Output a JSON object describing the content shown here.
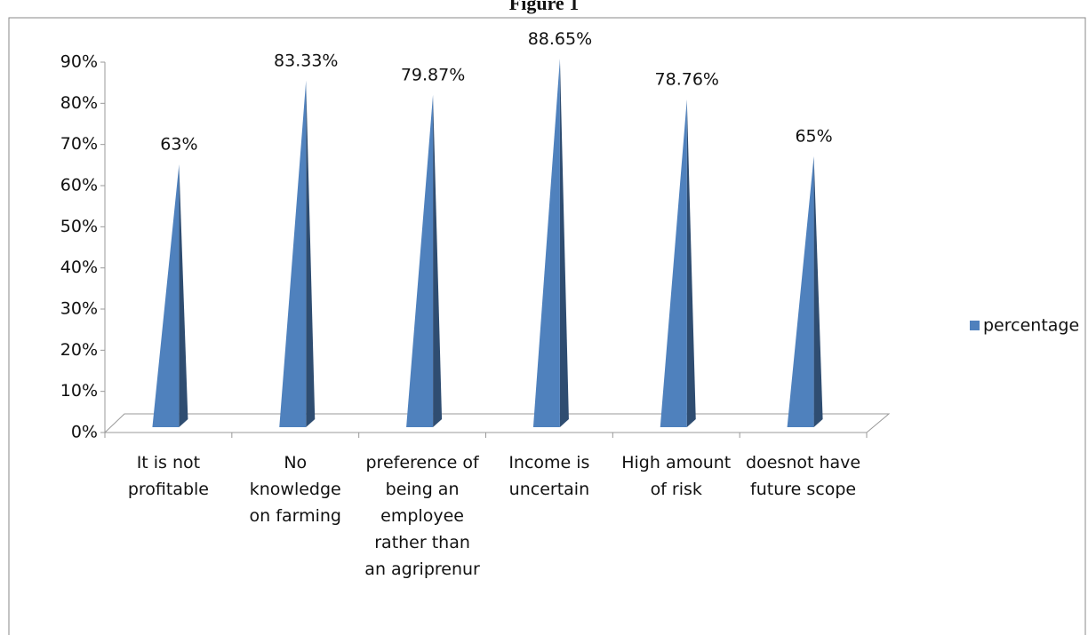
{
  "chart_data": {
    "type": "pyramid",
    "title": "Figure 1",
    "categories": [
      "It is not profitable",
      "No knowledge on farming",
      "preference of being an employee rather than an agriprenur",
      "Income is uncertain",
      "High amount of risk",
      "doesnot have future scope"
    ],
    "series": [
      {
        "name": "percentage",
        "color": "#4f81bd",
        "values": [
          63,
          83.33,
          79.87,
          88.65,
          78.76,
          65
        ],
        "value_labels": [
          "63%",
          "83.33%",
          "79.87%",
          "88.65%",
          "78.76%",
          "65%"
        ]
      }
    ],
    "ylim": [
      0,
      90
    ],
    "yticks": [
      {
        "value": 0,
        "label": "0%"
      },
      {
        "value": 10,
        "label": "10%"
      },
      {
        "value": 20,
        "label": "20%"
      },
      {
        "value": 30,
        "label": "30%"
      },
      {
        "value": 40,
        "label": "40%"
      },
      {
        "value": 50,
        "label": "50%"
      },
      {
        "value": 60,
        "label": "60%"
      },
      {
        "value": 70,
        "label": "70%"
      },
      {
        "value": 80,
        "label": "80%"
      },
      {
        "value": 90,
        "label": "90%"
      }
    ],
    "legend": "right"
  }
}
